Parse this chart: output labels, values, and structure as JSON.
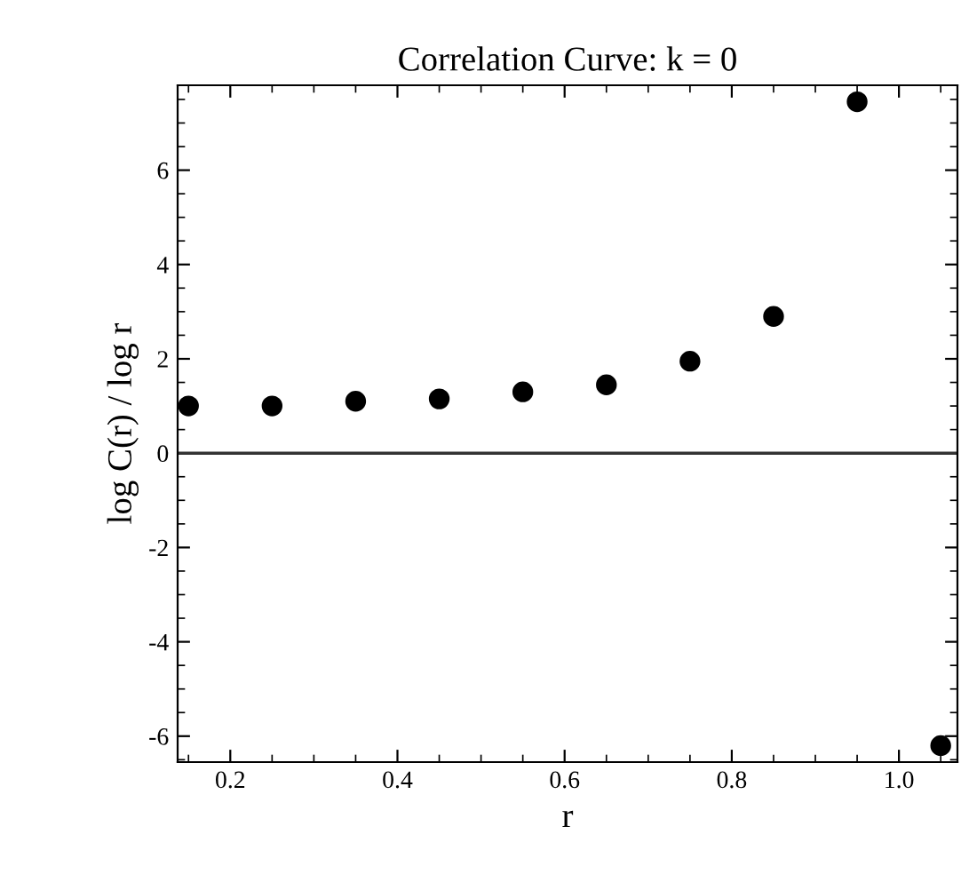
{
  "chart_data": {
    "type": "scatter",
    "title": "Correlation Curve: k = 0",
    "xlabel": "r",
    "ylabel": "log C(r) / log r",
    "x": [
      0.15,
      0.25,
      0.35,
      0.45,
      0.55,
      0.65,
      0.75,
      0.85,
      0.95,
      1.05
    ],
    "series": [
      {
        "color": "#000000",
        "values": [
          1.0,
          1.0,
          1.1,
          1.15,
          1.3,
          1.45,
          1.95,
          2.9,
          7.45,
          -6.2
        ]
      }
    ],
    "xlim": [
      0.137,
      1.07
    ],
    "xticks": [
      0.2,
      0.4,
      0.6,
      0.8,
      {
        "value": 1,
        "label": "1.0"
      }
    ],
    "ylim": [
      -6.55,
      7.8
    ],
    "yticks": [
      -6,
      -4,
      -2,
      0,
      2,
      4,
      6
    ],
    "ref_lines": [
      {
        "axis": "y",
        "value": 0,
        "color": "#333333"
      }
    ],
    "marker": "circle",
    "grid": false,
    "legend": false
  }
}
